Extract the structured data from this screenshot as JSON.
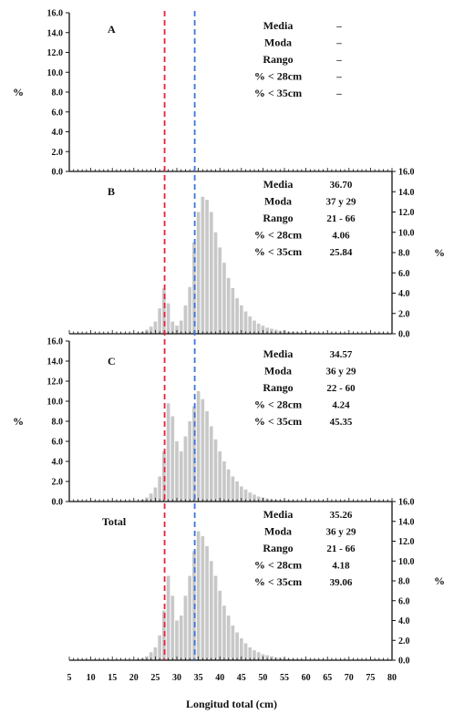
{
  "chart_data": {
    "type": "bar",
    "xlabel": "Longitud total (cm)",
    "ylabel": "%",
    "xlim": [
      5,
      80
    ],
    "x_ticks": [
      5,
      10,
      15,
      20,
      25,
      30,
      35,
      40,
      45,
      50,
      55,
      60,
      65,
      70,
      75,
      80
    ],
    "ylim": [
      0,
      16
    ],
    "y_ticks": [
      "0.0",
      "2.0",
      "4.0",
      "6.0",
      "8.0",
      "10.0",
      "12.0",
      "14.0",
      "16.0"
    ],
    "threshold_lines": [
      {
        "x": 28,
        "color": "#e8213a"
      },
      {
        "x": 35,
        "color": "#3a74d8"
      }
    ],
    "bar_color": "#c8c8c8",
    "panels": [
      {
        "label": "A",
        "yaxis_side": "left",
        "stats": [
          {
            "name": "Media",
            "value": "–"
          },
          {
            "name": "Moda",
            "value": "–"
          },
          {
            "name": "Rango",
            "value": "–"
          },
          {
            "name": "% < 28cm",
            "value": "–",
            "color": "#e8213a"
          },
          {
            "name": "% < 35cm",
            "value": "–",
            "color": "#3a74d8"
          }
        ],
        "x": [],
        "values": []
      },
      {
        "label": "B",
        "yaxis_side": "right",
        "stats": [
          {
            "name": "Media",
            "value": "36.70"
          },
          {
            "name": "Moda",
            "value": "37 y 29"
          },
          {
            "name": "Rango",
            "value": "21 - 66"
          },
          {
            "name": "% < 28cm",
            "value": "4.06",
            "color": "#e8213a"
          },
          {
            "name": "% < 35cm",
            "value": "25.84",
            "color": "#3a74d8"
          }
        ],
        "x": [
          21,
          22,
          23,
          24,
          25,
          26,
          27,
          28,
          29,
          30,
          31,
          32,
          33,
          34,
          35,
          36,
          37,
          38,
          39,
          40,
          41,
          42,
          43,
          44,
          45,
          46,
          47,
          48,
          49,
          50,
          51,
          52,
          53,
          54,
          55,
          56,
          57,
          58,
          59,
          60,
          61,
          62,
          63,
          64,
          65,
          66
        ],
        "values": [
          0.1,
          0.2,
          0.4,
          0.7,
          1.2,
          2.5,
          4.5,
          3.0,
          1.2,
          0.8,
          1.3,
          2.8,
          4.6,
          9.0,
          12.0,
          13.5,
          13.2,
          12.0,
          10.0,
          8.5,
          7.0,
          5.5,
          4.5,
          3.5,
          2.8,
          2.2,
          1.7,
          1.3,
          1.0,
          0.8,
          0.6,
          0.5,
          0.4,
          0.3,
          0.3,
          0.2,
          0.2,
          0.15,
          0.1,
          0.1,
          0.1,
          0.05,
          0.05,
          0.05,
          0.05,
          0.05
        ]
      },
      {
        "label": "C",
        "yaxis_side": "left",
        "stats": [
          {
            "name": "Media",
            "value": "34.57"
          },
          {
            "name": "Moda",
            "value": "36 y 29"
          },
          {
            "name": "Rango",
            "value": "22 - 60"
          },
          {
            "name": "% < 28cm",
            "value": "4.24",
            "color": "#e8213a"
          },
          {
            "name": "% < 35cm",
            "value": "45.35",
            "color": "#3a74d8"
          }
        ],
        "x": [
          22,
          23,
          24,
          25,
          26,
          27,
          28,
          29,
          30,
          31,
          32,
          33,
          34,
          35,
          36,
          37,
          38,
          39,
          40,
          41,
          42,
          43,
          44,
          45,
          46,
          47,
          48,
          49,
          50,
          51,
          52,
          53,
          54,
          55,
          56,
          57,
          58,
          59,
          60
        ],
        "values": [
          0.2,
          0.4,
          0.8,
          1.4,
          2.5,
          5.0,
          9.8,
          8.5,
          6.0,
          5.0,
          6.5,
          8.0,
          9.5,
          11.0,
          10.2,
          9.0,
          7.5,
          6.2,
          5.0,
          4.0,
          3.2,
          2.5,
          2.0,
          1.5,
          1.2,
          0.9,
          0.7,
          0.5,
          0.4,
          0.3,
          0.25,
          0.2,
          0.15,
          0.1,
          0.1,
          0.08,
          0.05,
          0.05,
          0.05
        ]
      },
      {
        "label": "Total",
        "yaxis_side": "right",
        "stats": [
          {
            "name": "Media",
            "value": "35.26"
          },
          {
            "name": "Moda",
            "value": "36 y 29"
          },
          {
            "name": "Rango",
            "value": "21 - 66"
          },
          {
            "name": "% < 28cm",
            "value": "4.18",
            "color": "#e8213a"
          },
          {
            "name": "% < 35cm",
            "value": "39.06",
            "color": "#3a74d8"
          }
        ],
        "x": [
          21,
          22,
          23,
          24,
          25,
          26,
          27,
          28,
          29,
          30,
          31,
          32,
          33,
          34,
          35,
          36,
          37,
          38,
          39,
          40,
          41,
          42,
          43,
          44,
          45,
          46,
          47,
          48,
          49,
          50,
          51,
          52,
          53,
          54,
          55,
          56,
          57,
          58,
          59,
          60,
          61,
          62,
          63,
          64,
          65,
          66
        ],
        "values": [
          0.1,
          0.2,
          0.4,
          0.8,
          1.3,
          2.5,
          5.0,
          8.5,
          6.5,
          4.0,
          4.5,
          6.5,
          8.5,
          11.0,
          13.0,
          12.5,
          11.5,
          10.0,
          8.5,
          7.0,
          5.5,
          4.5,
          3.5,
          2.8,
          2.2,
          1.7,
          1.3,
          1.0,
          0.8,
          0.6,
          0.5,
          0.4,
          0.3,
          0.25,
          0.2,
          0.15,
          0.12,
          0.1,
          0.08,
          0.06,
          0.05,
          0.05,
          0.05,
          0.05,
          0.05,
          0.05
        ]
      }
    ]
  }
}
